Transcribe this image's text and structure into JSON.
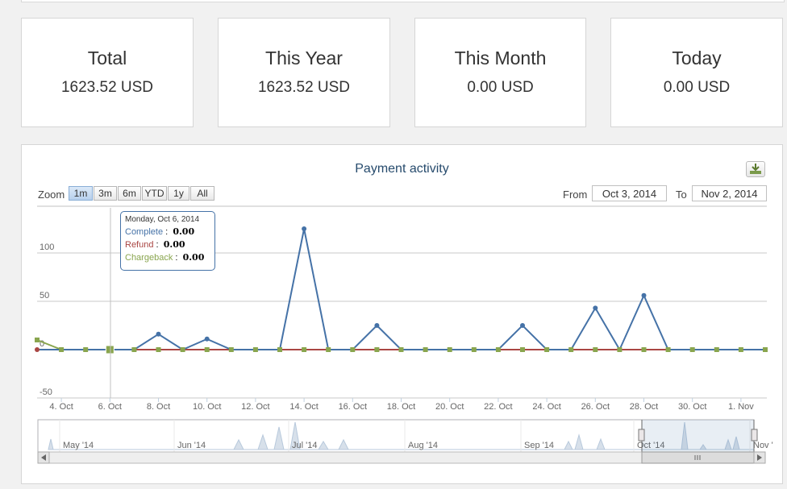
{
  "stats": [
    {
      "title": "Total",
      "value": "1623.52 USD"
    },
    {
      "title": "This Year",
      "value": "1623.52 USD"
    },
    {
      "title": "This Month",
      "value": "0.00 USD"
    },
    {
      "title": "Today",
      "value": "0.00 USD"
    }
  ],
  "panel": {
    "title": "Payment activity",
    "export_icon": "download-icon",
    "zoom_label": "Zoom",
    "zoom_buttons": [
      "1m",
      "3m",
      "6m",
      "YTD",
      "1y",
      "All"
    ],
    "zoom_selected": "1m",
    "from_label": "From",
    "from_value": "Oct 3, 2014",
    "to_label": "To",
    "to_value": "Nov 2, 2014"
  },
  "tooltip": {
    "date": "Monday, Oct 6, 2014",
    "rows": [
      {
        "label": "Complete",
        "value": "0.00",
        "color": "#4572a7"
      },
      {
        "label": "Refund",
        "value": "0.00",
        "color": "#aa4643"
      },
      {
        "label": "Chargeback",
        "value": "0.00",
        "color": "#89a54e"
      }
    ]
  },
  "navigator": {
    "months": [
      "May '14",
      "Jun '14",
      "Jul '14",
      "Aug '14",
      "Sep '14",
      "Oct '14",
      "Nov '"
    ]
  },
  "chart_data": {
    "type": "line",
    "title": "Payment activity",
    "xlabel": "",
    "ylabel": "",
    "ylim": [
      -50,
      140
    ],
    "yticks": [
      -50,
      0,
      50,
      100
    ],
    "xtick_labels": [
      "4. Oct",
      "6. Oct",
      "8. Oct",
      "10. Oct",
      "12. Oct",
      "14. Oct",
      "16. Oct",
      "18. Oct",
      "20. Oct",
      "22. Oct",
      "24. Oct",
      "26. Oct",
      "28. Oct",
      "30. Oct",
      "1. Nov"
    ],
    "x": [
      "2014-10-03",
      "2014-10-04",
      "2014-10-05",
      "2014-10-06",
      "2014-10-07",
      "2014-10-08",
      "2014-10-09",
      "2014-10-10",
      "2014-10-11",
      "2014-10-12",
      "2014-10-13",
      "2014-10-14",
      "2014-10-15",
      "2014-10-16",
      "2014-10-17",
      "2014-10-18",
      "2014-10-19",
      "2014-10-20",
      "2014-10-21",
      "2014-10-22",
      "2014-10-23",
      "2014-10-24",
      "2014-10-25",
      "2014-10-26",
      "2014-10-27",
      "2014-10-28",
      "2014-10-29",
      "2014-10-30",
      "2014-10-31",
      "2014-11-01",
      "2014-11-02"
    ],
    "series": [
      {
        "name": "Complete",
        "color": "#4572a7",
        "values": [
          0,
          0,
          0,
          0,
          0,
          16,
          0,
          11,
          0,
          0,
          0,
          125,
          0,
          0,
          25,
          0,
          0,
          0,
          0,
          0,
          25,
          0,
          0,
          43,
          0,
          56,
          0,
          0,
          0,
          0,
          0
        ]
      },
      {
        "name": "Refund",
        "color": "#aa4643",
        "values": [
          0,
          0,
          0,
          0,
          0,
          0,
          0,
          0,
          0,
          0,
          0,
          0,
          0,
          0,
          0,
          0,
          0,
          0,
          0,
          0,
          0,
          0,
          0,
          0,
          0,
          0,
          0,
          0,
          0,
          0,
          0
        ]
      },
      {
        "name": "Chargeback",
        "color": "#89a54e",
        "values": [
          10,
          0,
          0,
          0,
          0,
          0,
          0,
          0,
          0,
          0,
          0,
          0,
          0,
          0,
          0,
          0,
          0,
          0,
          0,
          0,
          0,
          0,
          0,
          0,
          0,
          0,
          0,
          0,
          0,
          0,
          0
        ]
      }
    ],
    "grid": true,
    "legend": "none"
  }
}
